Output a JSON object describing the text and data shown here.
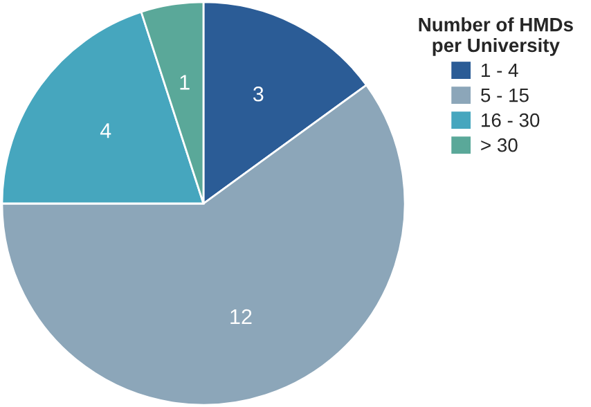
{
  "chart_data": {
    "type": "pie",
    "legend_title": "Number of HMDs\nper University",
    "categories": [
      "1 - 4",
      "5 - 15",
      "16 - 30",
      "> 30"
    ],
    "values": [
      3,
      12,
      4,
      1
    ],
    "colors": [
      "#2b5c96",
      "#8ca6b9",
      "#46a6be",
      "#5aa899"
    ],
    "data_labels": true,
    "legend": "top right"
  }
}
